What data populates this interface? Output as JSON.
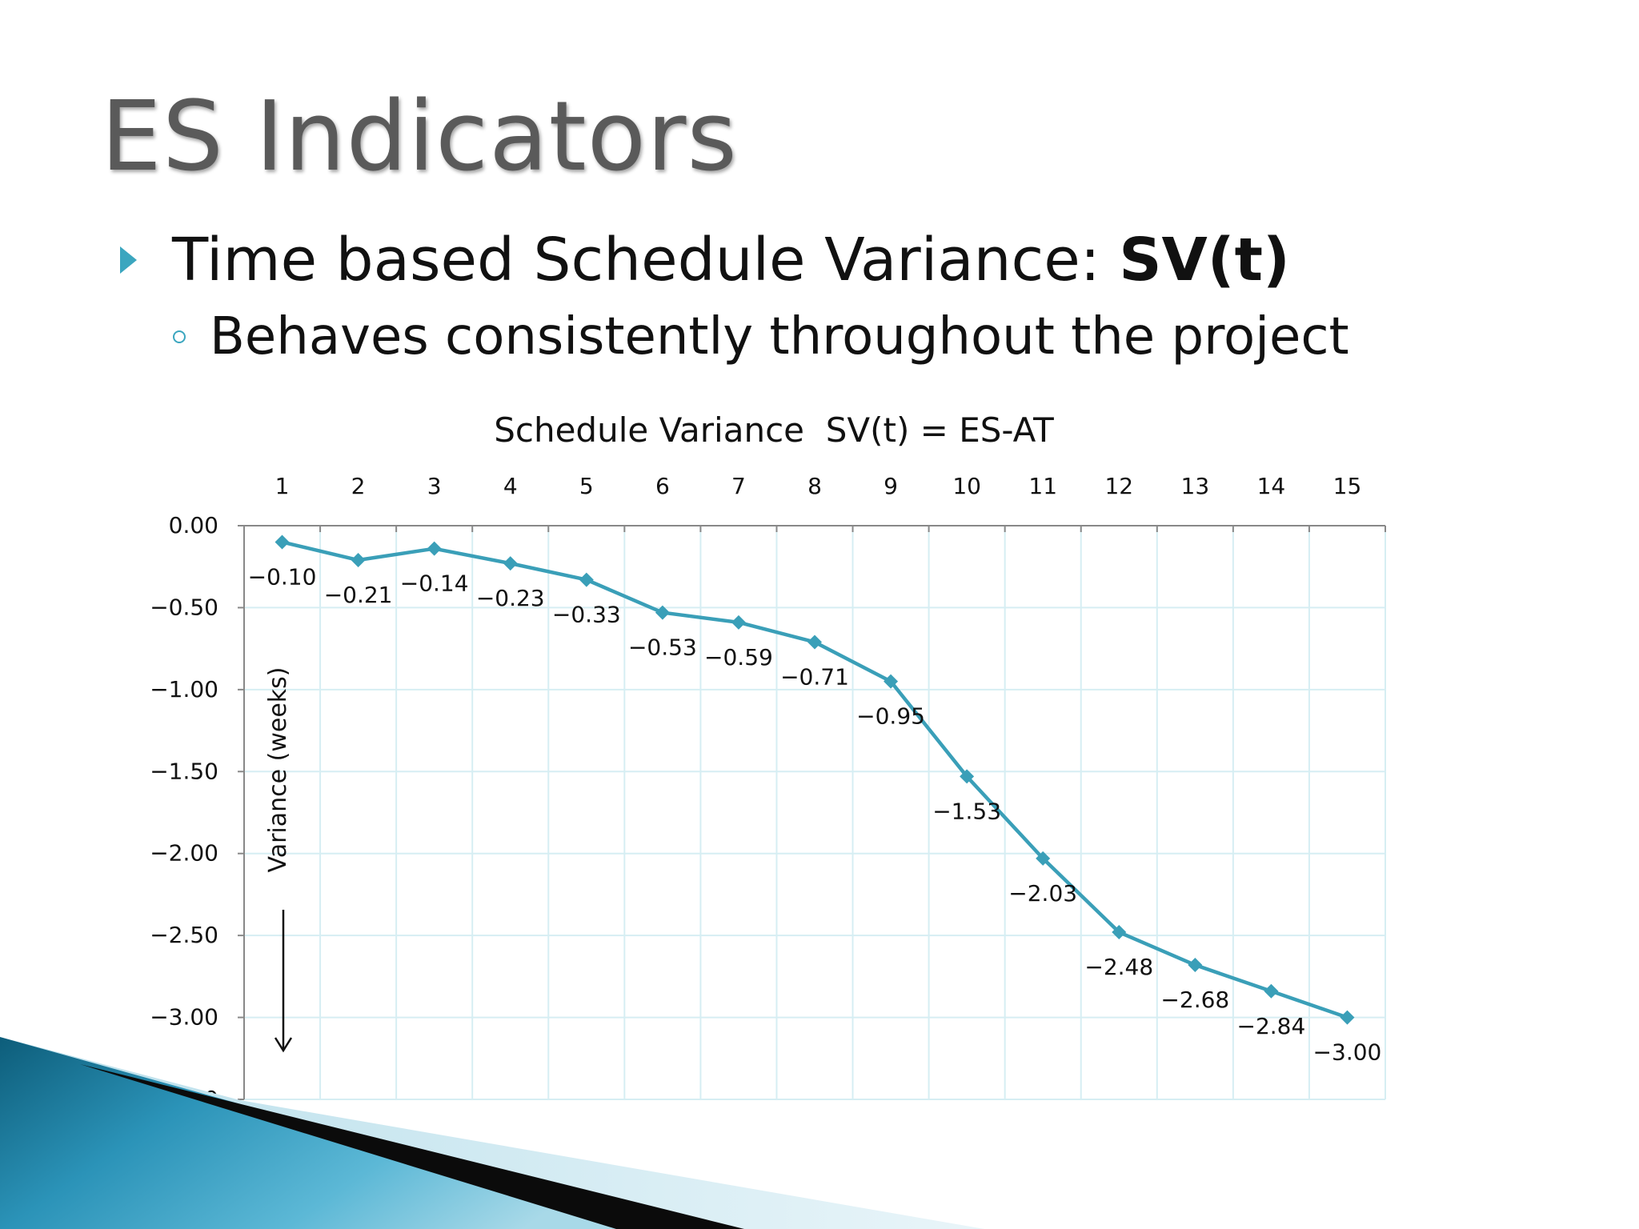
{
  "slide": {
    "title": "ES Indicators",
    "bullet1_prefix": "Time based Schedule Variance: ",
    "bullet1_bold": "SV(t)",
    "bullet2": "Behaves consistently throughout the project"
  },
  "colors": {
    "accent": "#3ba6bf",
    "series": "#3a9fb8",
    "grid": "#d6eef3"
  },
  "chart_data": {
    "type": "line",
    "title": "Schedule Variance  SV(t) = ES-AT",
    "ylabel": "Variance (weeks)",
    "xlabel": "",
    "x": [
      1,
      2,
      3,
      4,
      5,
      6,
      7,
      8,
      9,
      10,
      11,
      12,
      13,
      14,
      15
    ],
    "y_ticks": [
      "0.00",
      "-0.50",
      "-1.00",
      "-1.50",
      "-2.00",
      "-2.50",
      "-3.00",
      "-3.50"
    ],
    "ylim": [
      -3.5,
      0
    ],
    "x_axis_position": "top",
    "grid": true,
    "series": [
      {
        "values": [
          -0.1,
          -0.21,
          -0.14,
          -0.23,
          -0.33,
          -0.53,
          -0.59,
          -0.71,
          -0.95,
          -1.53,
          -2.03,
          -2.48,
          -2.68,
          -2.84,
          -3.0
        ],
        "labels": [
          "-0.10",
          "-0.21",
          "-0.14",
          "-0.23",
          "-0.33",
          "-0.53",
          "-0.59",
          "-0.71",
          "-0.95",
          "-1.53",
          "-2.03",
          "-2.48",
          "-2.68",
          "-2.84",
          "-3.00"
        ],
        "marker": "diamond"
      }
    ]
  }
}
